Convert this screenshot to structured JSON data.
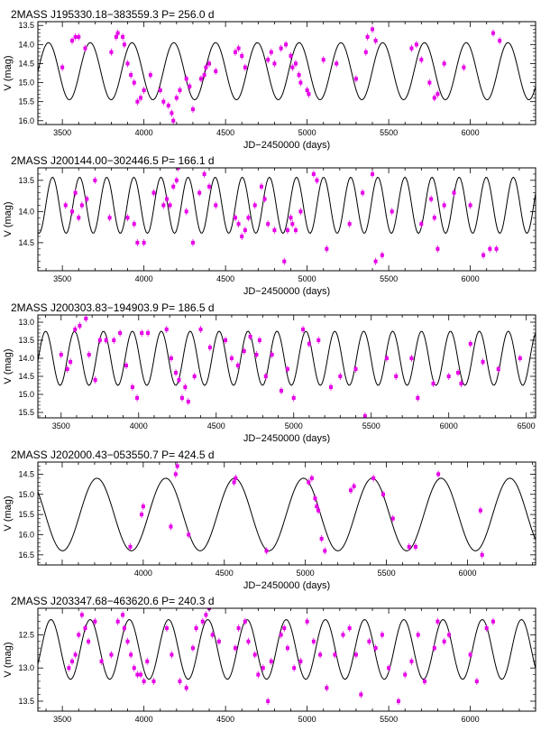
{
  "figure": {
    "point_color": "#e600e6",
    "curve_color": "#000000"
  },
  "chart_data": [
    {
      "type": "scatter",
      "title": "2MASS J195330.18−383559.3   P= 256.0 d",
      "xlabel": "JD−2450000 (days)",
      "ylabel": "V (mag)",
      "xlim": [
        3350,
        6400
      ],
      "ylim": [
        16.1,
        13.4
      ],
      "y_inverted": true,
      "xticks": [
        3500,
        4000,
        4500,
        5000,
        5500,
        6000
      ],
      "yticks": [
        13.5,
        14.0,
        14.5,
        15.0,
        15.5,
        16.0
      ],
      "model": {
        "period": 256.0,
        "mean": 14.7,
        "amplitude": 0.75,
        "phase_x": 3415
      },
      "series": [
        {
          "x": [
            3500,
            3560,
            3580,
            3600,
            3640,
            3800,
            3830,
            3840,
            3870,
            3880,
            3900,
            3920,
            3940,
            3960,
            3980,
            4000,
            4040,
            4100,
            4120,
            4150,
            4170,
            4180,
            4200,
            4220,
            4260,
            4280,
            4300,
            4350,
            4370,
            4380,
            4400,
            4440,
            4560,
            4580,
            4600,
            4620,
            4760,
            4780,
            4800,
            4840,
            4870,
            4900,
            4910,
            4930,
            4950,
            4960,
            5000,
            5010,
            5100,
            5180,
            5300,
            5360,
            5370,
            5400,
            5420,
            5640,
            5670,
            5700,
            5750,
            5780,
            5800,
            5840,
            5960,
            6140,
            6180
          ],
          "y": [
            14.6,
            13.9,
            13.8,
            13.8,
            14.1,
            14.2,
            13.8,
            13.7,
            13.8,
            14.0,
            14.5,
            14.8,
            15.0,
            15.5,
            15.4,
            15.2,
            14.8,
            15.2,
            15.5,
            15.6,
            15.8,
            16.0,
            15.4,
            15.2,
            14.9,
            15.1,
            15.7,
            14.9,
            14.8,
            14.6,
            14.5,
            14.7,
            14.2,
            14.1,
            14.3,
            14.6,
            14.4,
            14.2,
            14.5,
            14.1,
            14.0,
            14.3,
            14.6,
            14.5,
            14.8,
            15.0,
            15.2,
            15.3,
            14.4,
            14.5,
            14.9,
            14.2,
            13.8,
            13.6,
            13.9,
            14.1,
            14.0,
            14.4,
            15.0,
            15.4,
            15.3,
            14.5,
            14.6,
            13.7,
            13.9
          ]
        }
      ]
    },
    {
      "type": "scatter",
      "title": "2MASS J200144.00−302446.5   P= 166.1 d",
      "xlabel": "JD−2450000 (days)",
      "ylabel": "V (mag)",
      "xlim": [
        3350,
        6400
      ],
      "ylim": [
        14.95,
        13.3
      ],
      "y_inverted": true,
      "xticks": [
        3500,
        4000,
        4500,
        5000,
        5500,
        6000
      ],
      "yticks": [
        13.5,
        14.0,
        14.5
      ],
      "model": {
        "period": 166.1,
        "mean": 13.9,
        "amplitude": 0.45,
        "phase_x": 3440
      },
      "series": [
        {
          "x": [
            3520,
            3560,
            3580,
            3600,
            3620,
            3650,
            3700,
            3790,
            3900,
            3940,
            3960,
            4000,
            4060,
            4120,
            4140,
            4160,
            4180,
            4200,
            4210,
            4260,
            4300,
            4340,
            4370,
            4400,
            4440,
            4560,
            4580,
            4600,
            4620,
            4640,
            4680,
            4720,
            4740,
            4760,
            4800,
            4860,
            4880,
            4900,
            4910,
            4930,
            4960,
            5040,
            5060,
            5120,
            5260,
            5340,
            5400,
            5420,
            5460,
            5520,
            5700,
            5760,
            5780,
            5800,
            5840,
            5900,
            6000,
            6080,
            6120,
            6160
          ],
          "y": [
            13.9,
            14.0,
            13.7,
            14.1,
            13.9,
            13.8,
            13.5,
            14.1,
            14.1,
            14.2,
            14.5,
            14.5,
            13.7,
            13.9,
            13.8,
            13.9,
            13.6,
            13.5,
            13.3,
            14.0,
            14.5,
            13.7,
            13.4,
            13.6,
            13.9,
            14.1,
            14.2,
            14.4,
            14.3,
            14.1,
            13.9,
            13.6,
            13.8,
            14.2,
            14.3,
            14.8,
            14.3,
            14.1,
            14.2,
            14.3,
            14.0,
            13.4,
            13.5,
            14.6,
            14.2,
            13.7,
            13.4,
            14.8,
            14.7,
            14.0,
            14.2,
            13.8,
            14.1,
            14.6,
            13.9,
            13.7,
            13.9,
            14.7,
            14.6,
            14.6
          ]
        }
      ]
    },
    {
      "type": "scatter",
      "title": "2MASS J200303.83−194903.9   P= 186.5 d",
      "xlabel": "JD−2450000 (days)",
      "ylabel": "V (mag)",
      "xlim": [
        3350,
        6560
      ],
      "ylim": [
        15.65,
        12.8
      ],
      "y_inverted": true,
      "xticks": [
        3500,
        4000,
        4500,
        5000,
        5500,
        6000,
        6500
      ],
      "yticks": [
        13.0,
        13.5,
        14.0,
        14.5,
        15.0,
        15.5
      ],
      "model": {
        "period": 186.5,
        "mean": 14.0,
        "amplitude": 0.75,
        "phase_x": 3400
      },
      "series": [
        {
          "x": [
            3500,
            3540,
            3560,
            3590,
            3620,
            3660,
            3680,
            3720,
            3750,
            3790,
            3840,
            3880,
            3920,
            3960,
            3990,
            4020,
            4060,
            4180,
            4210,
            4240,
            4260,
            4280,
            4300,
            4320,
            4360,
            4400,
            4460,
            4560,
            4600,
            4640,
            4680,
            4720,
            4760,
            4780,
            4820,
            4860,
            4920,
            4960,
            5000,
            5060,
            5100,
            5160,
            5240,
            5300,
            5400,
            5460,
            5600,
            5660,
            5760,
            5800,
            5900,
            6000,
            6060,
            6080,
            6140,
            6220,
            6320,
            6460
          ],
          "y": [
            13.9,
            14.3,
            14.1,
            13.2,
            13.1,
            12.9,
            13.9,
            14.6,
            13.5,
            13.5,
            13.5,
            13.3,
            14.2,
            14.8,
            15.1,
            13.3,
            13.3,
            13.2,
            14.0,
            14.4,
            14.6,
            15.1,
            14.8,
            15.2,
            14.5,
            13.2,
            13.7,
            13.5,
            14.0,
            14.2,
            13.8,
            13.4,
            13.9,
            13.5,
            14.5,
            13.9,
            14.9,
            14.3,
            15.1,
            13.2,
            13.6,
            13.5,
            14.8,
            14.5,
            14.3,
            15.6,
            14.0,
            14.5,
            14.0,
            15.1,
            14.7,
            14.5,
            14.4,
            14.7,
            13.6,
            14.1,
            14.3,
            14.0
          ]
        }
      ]
    },
    {
      "type": "scatter",
      "title": "2MASS J202000.43−053550.7   P= 424.5 d",
      "xlabel": "JD−2450000 (days)",
      "ylabel": "V (mag)",
      "xlim": [
        3350,
        6420
      ],
      "ylim": [
        16.75,
        14.2
      ],
      "y_inverted": true,
      "xticks": [
        4000,
        4500,
        5000,
        5500,
        6000
      ],
      "yticks": [
        14.5,
        15.0,
        15.5,
        16.0,
        16.5
      ],
      "model": {
        "period": 424.5,
        "mean": 15.5,
        "amplitude": 0.9,
        "phase_x": 3290
      },
      "series": [
        {
          "x": [
            3920,
            3990,
            4000,
            4170,
            4200,
            4210,
            4280,
            4560,
            4570,
            4760,
            5020,
            5040,
            5060,
            5070,
            5080,
            5100,
            5120,
            5280,
            5300,
            5420,
            5480,
            5540,
            5640,
            5680,
            5820,
            6080,
            6090
          ],
          "y": [
            16.3,
            15.5,
            15.3,
            15.8,
            14.5,
            14.3,
            16.0,
            14.7,
            14.6,
            16.4,
            14.7,
            14.6,
            15.1,
            15.3,
            15.4,
            16.1,
            16.4,
            14.9,
            14.8,
            14.6,
            15.0,
            15.6,
            16.3,
            16.3,
            14.5,
            15.4,
            16.5
          ]
        }
      ]
    },
    {
      "type": "scatter",
      "title": "2MASS J203347.68−463620.6   P= 240.3 d",
      "xlabel": "JD−2450000 (days)",
      "ylabel": "V (mag)",
      "xlim": [
        3350,
        6400
      ],
      "ylim": [
        13.65,
        12.1
      ],
      "y_inverted": true,
      "xticks": [
        3500,
        4000,
        4500,
        5000,
        5500,
        6000
      ],
      "yticks": [
        12.5,
        13.0,
        13.5
      ],
      "model": {
        "period": 240.3,
        "mean": 12.72,
        "amplitude": 0.45,
        "phase_x": 3430
      },
      "series": [
        {
          "x": [
            3540,
            3560,
            3580,
            3600,
            3620,
            3640,
            3660,
            3700,
            3740,
            3800,
            3840,
            3870,
            3880,
            3900,
            3920,
            3940,
            3960,
            3980,
            4000,
            4020,
            4060,
            4140,
            4170,
            4220,
            4260,
            4300,
            4320,
            4360,
            4380,
            4400,
            4420,
            4460,
            4560,
            4580,
            4620,
            4640,
            4680,
            4700,
            4730,
            4760,
            4780,
            4840,
            4860,
            4880,
            4920,
            4960,
            5000,
            5040,
            5080,
            5120,
            5170,
            5220,
            5260,
            5300,
            5330,
            5380,
            5420,
            5460,
            5500,
            5560,
            5600,
            5640,
            5680,
            5720,
            5780,
            5800,
            5840,
            5870,
            6000,
            6040,
            6100,
            6140
          ],
          "y": [
            13.0,
            12.9,
            12.8,
            12.5,
            12.2,
            12.4,
            12.6,
            12.3,
            12.9,
            12.8,
            12.3,
            12.2,
            12.4,
            12.6,
            12.8,
            13.0,
            13.1,
            13.1,
            13.2,
            12.9,
            13.2,
            12.4,
            12.8,
            13.2,
            13.3,
            12.7,
            12.4,
            12.3,
            12.2,
            12.1,
            12.5,
            12.6,
            12.7,
            12.4,
            12.3,
            12.6,
            12.8,
            13.1,
            13.0,
            13.5,
            12.9,
            12.5,
            12.4,
            12.7,
            13.0,
            12.9,
            12.3,
            12.6,
            12.8,
            13.3,
            12.8,
            12.5,
            12.4,
            12.8,
            13.4,
            12.6,
            12.7,
            12.5,
            13.0,
            13.5,
            13.1,
            12.9,
            12.5,
            13.2,
            12.7,
            12.3,
            12.6,
            12.5,
            12.8,
            13.2,
            12.4,
            12.3
          ]
        }
      ]
    }
  ]
}
